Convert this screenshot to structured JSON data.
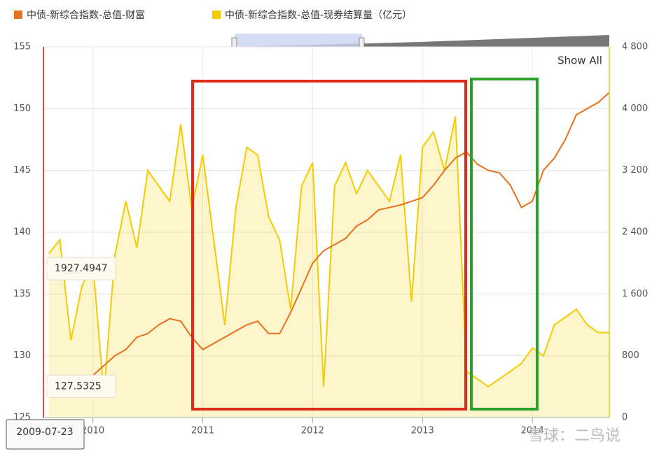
{
  "chart_data": {
    "type": "line",
    "x": [
      2009.6,
      2009.7,
      2009.8,
      2009.9,
      2010.0,
      2010.1,
      2010.2,
      2010.3,
      2010.4,
      2010.5,
      2010.6,
      2010.7,
      2010.8,
      2010.9,
      2011.0,
      2011.1,
      2011.2,
      2011.3,
      2011.4,
      2011.5,
      2011.6,
      2011.7,
      2011.8,
      2011.9,
      2012.0,
      2012.1,
      2012.2,
      2012.3,
      2012.4,
      2012.5,
      2012.6,
      2012.7,
      2012.8,
      2012.9,
      2013.0,
      2013.1,
      2013.2,
      2013.3,
      2013.4,
      2013.5,
      2013.6,
      2013.7,
      2013.8,
      2013.9,
      2014.0,
      2014.1,
      2014.2,
      2014.3,
      2014.4,
      2014.5,
      2014.6,
      2014.7
    ],
    "series": [
      {
        "name": "中债-新综合指数-总值-财富",
        "color": "#e8711c",
        "axis": "y",
        "values": [
          127.5,
          127.6,
          127.8,
          128,
          128.4,
          129.2,
          130,
          130.5,
          131.5,
          131.8,
          132.5,
          133,
          132.8,
          131.5,
          130.5,
          131,
          131.5,
          132,
          132.5,
          132.8,
          131.8,
          131.8,
          133.5,
          135.5,
          137.5,
          138.5,
          139,
          139.5,
          140.5,
          141,
          141.8,
          142,
          142.2,
          142.5,
          142.8,
          143.8,
          145,
          146,
          146.5,
          145.5,
          145,
          144.8,
          143.8,
          142,
          142.5,
          145,
          146,
          147.5,
          149.5,
          150,
          150.5,
          151.3
        ]
      },
      {
        "name": "中债-新综合指数-总值-现券结算量（亿元）",
        "color": "#f5cc00",
        "axis": "y2",
        "values": [
          2126,
          2300,
          1000,
          1700,
          2000,
          300,
          2100,
          2800,
          2200,
          3200,
          3000,
          2800,
          3800,
          2700,
          3400,
          2300,
          1200,
          2700,
          3500,
          3400,
          2600,
          2300,
          1400,
          3000,
          3300,
          400,
          3000,
          3300,
          2900,
          3200,
          3000,
          2800,
          3400,
          1500,
          3500,
          3700,
          3200,
          3900,
          600,
          500,
          400,
          500,
          600,
          700,
          900,
          800,
          1200,
          1300,
          1400,
          1200,
          1100,
          1100
        ]
      }
    ],
    "xlim": [
      2009.55,
      2014.7
    ],
    "xticks": [
      2010,
      2011,
      2012,
      2013,
      2014
    ],
    "ylim": [
      125,
      155
    ],
    "yticks": [
      125,
      130,
      135,
      140,
      145,
      150,
      155
    ],
    "y2lim": [
      0,
      4800
    ],
    "y2ticks": [
      0,
      800,
      {
        "value": 1600,
        "label": "1 600"
      },
      {
        "value": 2400,
        "label": "2 400"
      },
      {
        "value": 3200,
        "label": "3 200"
      },
      {
        "value": 4000,
        "label": "4 000"
      },
      {
        "value": 4800,
        "label": "4 800"
      }
    ],
    "grid": true,
    "button": "Show All",
    "tooltip": {
      "date": "2009-07-23",
      "values": [
        1927.4947,
        127.5325
      ]
    },
    "watermark": "雪球：二鸟说"
  }
}
